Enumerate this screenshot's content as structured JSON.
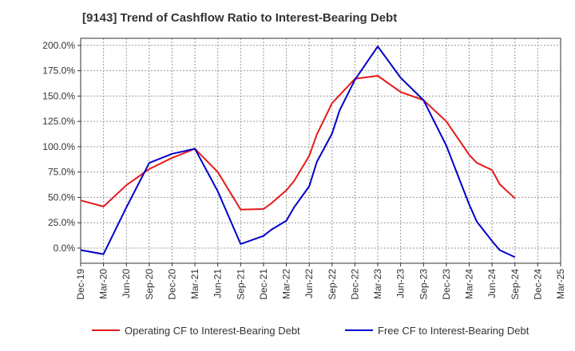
{
  "title": "[9143]  Trend of Cashflow Ratio to Interest-Bearing Debt",
  "chart_data": {
    "type": "line",
    "title": "[9143]  Trend of Cashflow Ratio to Interest-Bearing Debt",
    "categories": [
      "Dec-19",
      "Mar-20",
      "Jun-20",
      "Sep-20",
      "Dec-20",
      "Mar-21",
      "Jun-21",
      "Sep-21",
      "Dec-21",
      "Mar-22",
      "Jun-22",
      "Sep-22",
      "Dec-22",
      "Mar-23",
      "Jun-23",
      "Sep-23",
      "Dec-23",
      "Mar-24",
      "Jun-24",
      "Sep-24",
      "Dec-24",
      "Mar-25"
    ],
    "x": [
      "Dec-19",
      "Jan-20",
      "Mar-20",
      "Jun-20",
      "Sep-20",
      "Dec-20",
      "Mar-21",
      "Jun-21",
      "Sep-21",
      "Dec-21",
      "Jan-22",
      "Mar-22",
      "Apr-22",
      "Jun-22",
      "Jul-22",
      "Sep-22",
      "Oct-22",
      "Dec-22",
      "Mar-23",
      "Apr-23",
      "Jun-23",
      "Sep-23",
      "Dec-23",
      "Mar-24",
      "Apr-24",
      "Jun-24",
      "Jul-24",
      "Sep-24"
    ],
    "y_ticks": [
      "0.0%",
      "25.0%",
      "50.0%",
      "75.0%",
      "100.0%",
      "125.0%",
      "150.0%",
      "175.0%",
      "200.0%"
    ],
    "ylim": [
      -15,
      207
    ],
    "y_unit": "%",
    "grid": true,
    "legend_position": "bottom",
    "series": [
      {
        "name": "Operating CF to Interest-Bearing Debt",
        "color": "#e31a1c",
        "points": [
          [
            "Dec-19",
            47
          ],
          [
            "Mar-20",
            41
          ],
          [
            "Jun-20",
            62
          ],
          [
            "Sep-20",
            78
          ],
          [
            "Dec-20",
            89
          ],
          [
            "Mar-21",
            98
          ],
          [
            "Jun-21",
            75
          ],
          [
            "Sep-21",
            38
          ],
          [
            "Dec-21",
            38.5
          ],
          [
            "Jan-22",
            44
          ],
          [
            "Mar-22",
            57
          ],
          [
            "Apr-22",
            66
          ],
          [
            "Jun-22",
            91
          ],
          [
            "Jul-22",
            112
          ],
          [
            "Sep-22",
            143
          ],
          [
            "Dec-22",
            167
          ],
          [
            "Mar-23",
            170
          ],
          [
            "Jun-23",
            154
          ],
          [
            "Sep-23",
            146
          ],
          [
            "Dec-23",
            125
          ],
          [
            "Mar-24",
            92
          ],
          [
            "Apr-24",
            84
          ],
          [
            "Jun-24",
            77
          ],
          [
            "Jul-24",
            63
          ],
          [
            "Sep-24",
            49
          ]
        ]
      },
      {
        "name": "Free CF to Interest-Bearing Debt",
        "color": "#0000cc",
        "points": [
          [
            "Dec-19",
            -2
          ],
          [
            "Mar-20",
            -6
          ],
          [
            "Jun-20",
            40
          ],
          [
            "Sep-20",
            84
          ],
          [
            "Dec-20",
            93
          ],
          [
            "Mar-21",
            98
          ],
          [
            "Jun-21",
            56
          ],
          [
            "Sep-21",
            4
          ],
          [
            "Dec-21",
            12
          ],
          [
            "Jan-22",
            18
          ],
          [
            "Mar-22",
            27
          ],
          [
            "Apr-22",
            40
          ],
          [
            "Jun-22",
            61
          ],
          [
            "Jul-22",
            85
          ],
          [
            "Sep-22",
            113
          ],
          [
            "Oct-22",
            136
          ],
          [
            "Dec-22",
            166
          ],
          [
            "Mar-23",
            199
          ],
          [
            "Jun-23",
            168
          ],
          [
            "Sep-23",
            146
          ],
          [
            "Dec-23",
            101
          ],
          [
            "Mar-24",
            43
          ],
          [
            "Apr-24",
            26
          ],
          [
            "Jun-24",
            7
          ],
          [
            "Jul-24",
            -2
          ],
          [
            "Sep-24",
            -9
          ]
        ]
      }
    ]
  }
}
